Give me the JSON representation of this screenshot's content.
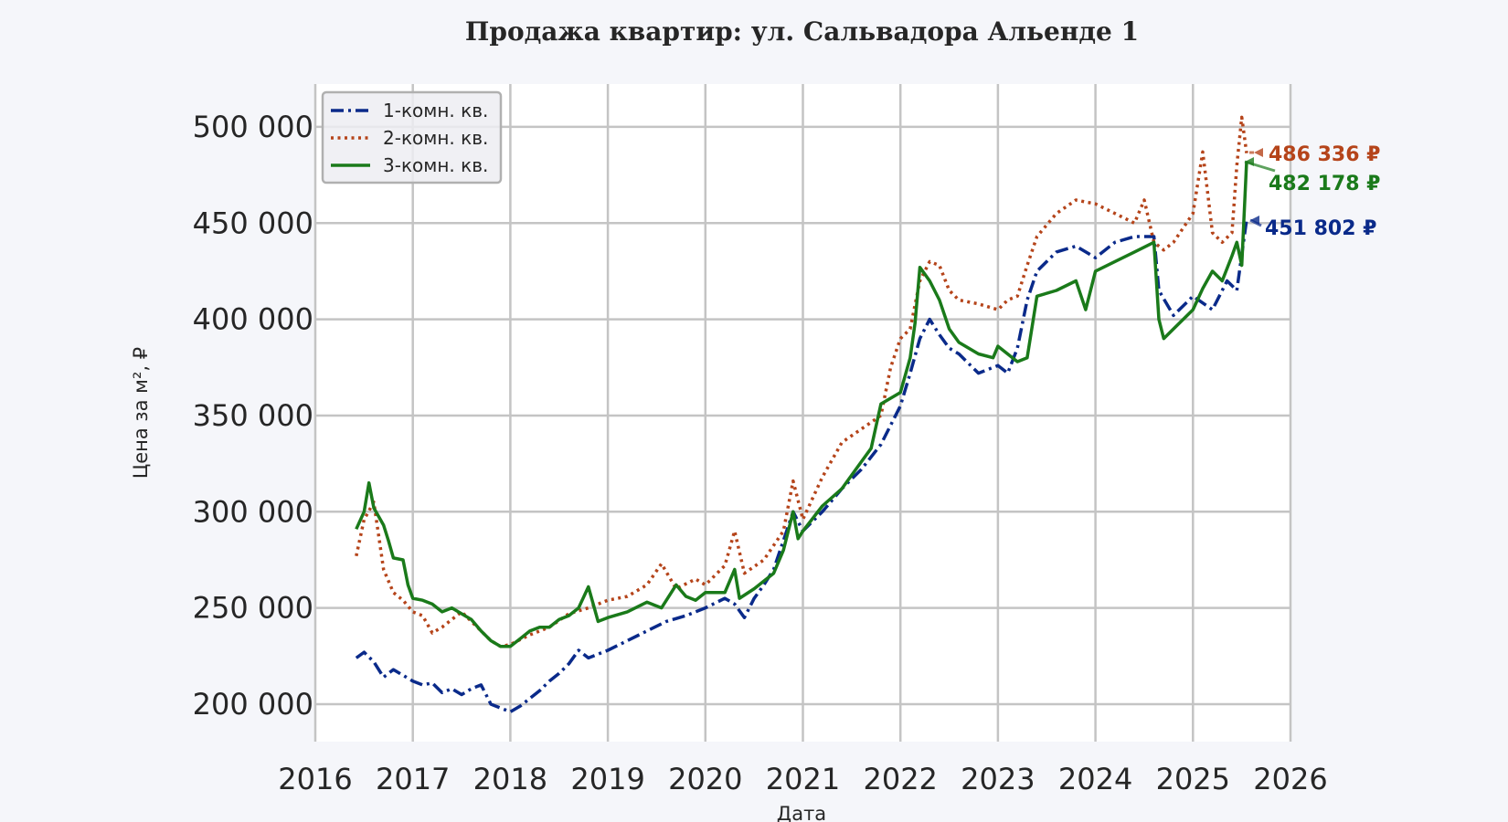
{
  "chart_data": {
    "type": "line",
    "title": "Продажа квартир: ул. Сальвадора Альенде 1",
    "xlabel": "Дата",
    "ylabel": "Цена за м², ₽",
    "xlim": [
      2016,
      2026
    ],
    "ylim": [
      180000,
      520000
    ],
    "x_ticks": [
      "2016",
      "2017",
      "2018",
      "2019",
      "2020",
      "2021",
      "2022",
      "2023",
      "2024",
      "2025",
      "2026"
    ],
    "y_ticks": [
      {
        "value": 200000,
        "label": "200 000"
      },
      {
        "value": 250000,
        "label": "250 000"
      },
      {
        "value": 300000,
        "label": "300 000"
      },
      {
        "value": 350000,
        "label": "350 000"
      },
      {
        "value": 400000,
        "label": "400 000"
      },
      {
        "value": 450000,
        "label": "450 000"
      },
      {
        "value": 500000,
        "label": "500 000"
      }
    ],
    "grid": true,
    "legend_position": "upper left",
    "series": [
      {
        "name": "1-комн. кв.",
        "color": "#0a2a8a",
        "style": "dashdot",
        "x": [
          2016.42,
          2016.5,
          2016.6,
          2016.7,
          2016.8,
          2016.9,
          2017.0,
          2017.1,
          2017.2,
          2017.3,
          2017.4,
          2017.5,
          2017.6,
          2017.7,
          2017.8,
          2017.9,
          2018.0,
          2018.1,
          2018.2,
          2018.3,
          2018.4,
          2018.5,
          2018.6,
          2018.7,
          2018.8,
          2018.9,
          2019.0,
          2019.2,
          2019.4,
          2019.6,
          2019.8,
          2020.0,
          2020.2,
          2020.3,
          2020.4,
          2020.5,
          2020.6,
          2020.7,
          2020.8,
          2020.9,
          2021.0,
          2021.2,
          2021.4,
          2021.6,
          2021.8,
          2022.0,
          2022.1,
          2022.2,
          2022.3,
          2022.4,
          2022.5,
          2022.6,
          2022.8,
          2023.0,
          2023.1,
          2023.2,
          2023.3,
          2023.4,
          2023.6,
          2023.8,
          2024.0,
          2024.2,
          2024.4,
          2024.6,
          2024.65,
          2024.8,
          2025.0,
          2025.2,
          2025.35,
          2025.45,
          2025.55
        ],
        "y": [
          224000,
          227000,
          222000,
          214000,
          218000,
          215000,
          212000,
          210000,
          211000,
          206000,
          208000,
          205000,
          208000,
          210000,
          200000,
          198000,
          196000,
          199000,
          203000,
          207000,
          212000,
          216000,
          221000,
          228000,
          224000,
          226000,
          228000,
          233000,
          238000,
          243000,
          246000,
          250000,
          255000,
          252000,
          245000,
          255000,
          262000,
          270000,
          285000,
          300000,
          290000,
          300000,
          312000,
          322000,
          335000,
          355000,
          372000,
          390000,
          400000,
          392000,
          385000,
          382000,
          372000,
          376000,
          372000,
          385000,
          410000,
          425000,
          435000,
          438000,
          432000,
          440000,
          443000,
          443000,
          415000,
          402000,
          412000,
          405000,
          420000,
          415000,
          451802
        ]
      },
      {
        "name": "2-комн. кв.",
        "color": "#b5441a",
        "style": "dotted",
        "x": [
          2016.42,
          2016.5,
          2016.6,
          2016.7,
          2016.8,
          2016.9,
          2017.0,
          2017.1,
          2017.2,
          2017.3,
          2017.4,
          2017.5,
          2017.6,
          2017.7,
          2017.8,
          2017.9,
          2018.0,
          2018.2,
          2018.4,
          2018.6,
          2018.8,
          2019.0,
          2019.2,
          2019.4,
          2019.55,
          2019.7,
          2019.9,
          2020.0,
          2020.2,
          2020.3,
          2020.4,
          2020.6,
          2020.8,
          2020.9,
          2021.0,
          2021.2,
          2021.4,
          2021.6,
          2021.8,
          2021.9,
          2022.0,
          2022.1,
          2022.2,
          2022.3,
          2022.4,
          2022.5,
          2022.6,
          2022.8,
          2023.0,
          2023.1,
          2023.2,
          2023.3,
          2023.4,
          2023.6,
          2023.8,
          2024.0,
          2024.2,
          2024.4,
          2024.5,
          2024.6,
          2024.7,
          2024.8,
          2025.0,
          2025.1,
          2025.2,
          2025.3,
          2025.4,
          2025.45,
          2025.5,
          2025.55
        ],
        "y": [
          277000,
          296000,
          305000,
          270000,
          258000,
          254000,
          248000,
          246000,
          237000,
          240000,
          244000,
          248000,
          243000,
          238000,
          233000,
          230000,
          231000,
          236000,
          240000,
          247000,
          250000,
          254000,
          256000,
          262000,
          273000,
          260000,
          265000,
          262000,
          272000,
          290000,
          268000,
          275000,
          290000,
          316000,
          296000,
          318000,
          336000,
          343000,
          350000,
          375000,
          390000,
          395000,
          420000,
          430000,
          428000,
          415000,
          410000,
          408000,
          405000,
          410000,
          412000,
          428000,
          443000,
          455000,
          462000,
          460000,
          455000,
          450000,
          462000,
          440000,
          436000,
          440000,
          455000,
          487000,
          445000,
          440000,
          445000,
          480000,
          505000,
          486336
        ]
      },
      {
        "name": "3-комн. кв.",
        "color": "#1a7a1a",
        "style": "solid",
        "x": [
          2016.42,
          2016.5,
          2016.55,
          2016.6,
          2016.7,
          2016.75,
          2016.8,
          2016.9,
          2016.95,
          2017.0,
          2017.1,
          2017.2,
          2017.3,
          2017.4,
          2017.5,
          2017.6,
          2017.7,
          2017.8,
          2017.9,
          2018.0,
          2018.1,
          2018.2,
          2018.3,
          2018.4,
          2018.5,
          2018.6,
          2018.7,
          2018.8,
          2018.85,
          2018.9,
          2019.0,
          2019.2,
          2019.4,
          2019.55,
          2019.7,
          2019.8,
          2019.9,
          2020.0,
          2020.2,
          2020.3,
          2020.35,
          2020.5,
          2020.7,
          2020.8,
          2020.9,
          2020.95,
          2021.0,
          2021.2,
          2021.4,
          2021.6,
          2021.7,
          2021.8,
          2022.0,
          2022.1,
          2022.15,
          2022.2,
          2022.3,
          2022.4,
          2022.5,
          2022.6,
          2022.8,
          2022.95,
          2023.0,
          2023.2,
          2023.3,
          2023.4,
          2023.6,
          2023.8,
          2023.9,
          2024.0,
          2024.2,
          2024.4,
          2024.6,
          2024.65,
          2024.7,
          2024.8,
          2025.0,
          2025.1,
          2025.2,
          2025.3,
          2025.4,
          2025.45,
          2025.5,
          2025.55
        ],
        "y": [
          291000,
          300000,
          315000,
          302000,
          293000,
          285000,
          276000,
          275000,
          262000,
          255000,
          254000,
          252000,
          248000,
          250000,
          247000,
          244000,
          238000,
          233000,
          230000,
          230000,
          234000,
          238000,
          240000,
          240000,
          244000,
          246000,
          250000,
          261000,
          252000,
          243000,
          245000,
          248000,
          253000,
          250000,
          262000,
          256000,
          254000,
          258000,
          258000,
          270000,
          255000,
          260000,
          268000,
          280000,
          300000,
          286000,
          290000,
          303000,
          312000,
          326000,
          333000,
          356000,
          362000,
          380000,
          398000,
          427000,
          420000,
          410000,
          395000,
          388000,
          382000,
          380000,
          386000,
          378000,
          380000,
          412000,
          415000,
          420000,
          405000,
          425000,
          430000,
          435000,
          440000,
          400000,
          390000,
          395000,
          405000,
          416000,
          425000,
          420000,
          433000,
          440000,
          428000,
          482178
        ]
      }
    ],
    "annotations": [
      {
        "label": "486 336 ₽",
        "value": 486336,
        "series": "2-комн. кв.",
        "color": "#b5441a"
      },
      {
        "label": "482 178 ₽",
        "value": 482178,
        "series": "3-комн. кв.",
        "color": "#1a7a1a"
      },
      {
        "label": "451 802 ₽",
        "value": 451802,
        "series": "1-комн. кв.",
        "color": "#0a2a8a"
      }
    ]
  }
}
